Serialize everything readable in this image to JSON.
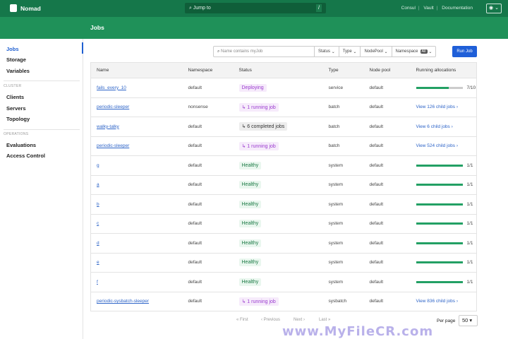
{
  "topbar": {
    "brand": "Nomad",
    "search_placeholder": "Jump to",
    "search_shortcut": "/",
    "links": [
      "Consul",
      "Vault",
      "Documentation"
    ],
    "user_icon": "user-circle-icon"
  },
  "page_title": "Jobs",
  "sidebar": {
    "items": [
      {
        "label": "Jobs",
        "active": true
      },
      {
        "label": "Storage"
      },
      {
        "label": "Variables"
      }
    ],
    "cluster_heading": "CLUSTER",
    "cluster_items": [
      "Clients",
      "Servers",
      "Topology"
    ],
    "operations_heading": "OPERATIONS",
    "operations_items": [
      "Evaluations",
      "Access Control"
    ]
  },
  "filters": {
    "search_placeholder": "Name contains myJob",
    "status": "Status",
    "type": "Type",
    "nodepool": "NodePool",
    "namespace": "Namespace",
    "namespace_badge": "All",
    "run_job": "Run Job"
  },
  "table": {
    "headers": [
      "Name",
      "Namespace",
      "Status",
      "Type",
      "Node pool",
      "Running allocations"
    ],
    "rows": [
      {
        "name": "fails_every_10",
        "namespace": "default",
        "status": "Deploying",
        "status_kind": "deploy",
        "type": "service",
        "node_pool": "default",
        "alloc_text": "7/10",
        "alloc_fraction": 0.7
      },
      {
        "name": "periodic-sleeper",
        "namespace": "nonsense",
        "status": "↳ 1 running job",
        "status_kind": "run",
        "type": "batch",
        "node_pool": "default",
        "child": "View 126 child jobs ›"
      },
      {
        "name": "walky-talky",
        "namespace": "default",
        "status": "↳ 6 completed jobs",
        "status_kind": "comp",
        "type": "batch",
        "node_pool": "default",
        "child": "View 6 child jobs ›"
      },
      {
        "name": "periodic-sleeper",
        "namespace": "default",
        "status": "↳ 1 running job",
        "status_kind": "run",
        "type": "batch",
        "node_pool": "default",
        "child": "View 524 child jobs ›"
      },
      {
        "name": "g",
        "namespace": "default",
        "status": "Healthy",
        "status_kind": "ok",
        "type": "system",
        "node_pool": "default",
        "alloc_text": "1/1",
        "alloc_fraction": 1
      },
      {
        "name": "a",
        "namespace": "default",
        "status": "Healthy",
        "status_kind": "ok",
        "type": "system",
        "node_pool": "default",
        "alloc_text": "1/1",
        "alloc_fraction": 1
      },
      {
        "name": "b",
        "namespace": "default",
        "status": "Healthy",
        "status_kind": "ok",
        "type": "system",
        "node_pool": "default",
        "alloc_text": "1/1",
        "alloc_fraction": 1
      },
      {
        "name": "c",
        "namespace": "default",
        "status": "Healthy",
        "status_kind": "ok",
        "type": "system",
        "node_pool": "default",
        "alloc_text": "1/1",
        "alloc_fraction": 1
      },
      {
        "name": "d",
        "namespace": "default",
        "status": "Healthy",
        "status_kind": "ok",
        "type": "system",
        "node_pool": "default",
        "alloc_text": "1/1",
        "alloc_fraction": 1
      },
      {
        "name": "e",
        "namespace": "default",
        "status": "Healthy",
        "status_kind": "ok",
        "type": "system",
        "node_pool": "default",
        "alloc_text": "1/1",
        "alloc_fraction": 1
      },
      {
        "name": "f",
        "namespace": "default",
        "status": "Healthy",
        "status_kind": "ok",
        "type": "system",
        "node_pool": "default",
        "alloc_text": "1/1",
        "alloc_fraction": 1
      },
      {
        "name": "periodic-sysbatch-sleeper",
        "namespace": "default",
        "status": "↳ 1 running job",
        "status_kind": "run",
        "type": "sysbatch",
        "node_pool": "default",
        "child": "View 836 child jobs ›"
      }
    ]
  },
  "pagination": {
    "first": "« First",
    "previous": "‹ Previous",
    "next": "Next ›",
    "last": "Last »",
    "per_page_label": "Per page",
    "per_page_value": "50 ▾"
  },
  "watermark": "www.MyFileCR.com",
  "colors": {
    "header": "#15774a",
    "subheader": "#1f9159",
    "accent": "#1f5fd8",
    "healthy": "#23a064"
  }
}
